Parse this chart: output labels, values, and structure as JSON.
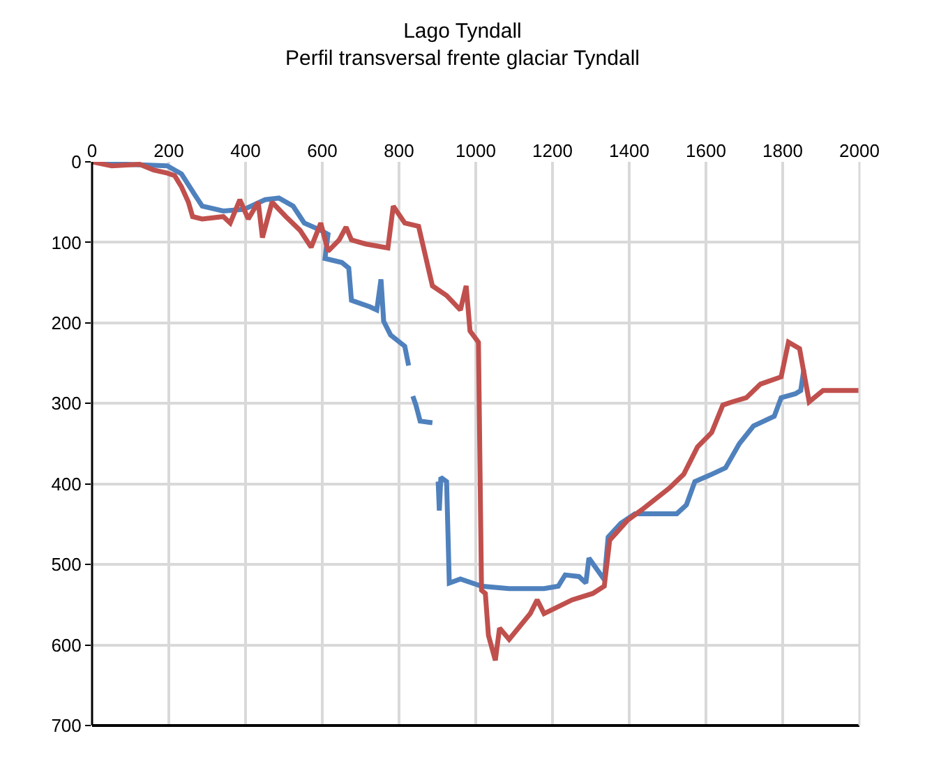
{
  "chart_data": {
    "type": "line",
    "title": "Lago Tyndall",
    "subtitle": "Perfil transversal frente glaciar Tyndall",
    "xlim": [
      0,
      2000
    ],
    "xticks": [
      0,
      200,
      400,
      600,
      800,
      1000,
      1200,
      1400,
      1600,
      1800,
      2000
    ],
    "ylim": [
      700,
      0
    ],
    "yticks": [
      0,
      100,
      200,
      300,
      400,
      500,
      600,
      700
    ],
    "grid": true,
    "marker": "none",
    "line_style": "solid",
    "series": [
      {
        "color": "#4f81bd",
        "x": [
          0,
          87,
          196,
          233,
          269,
          287,
          342,
          396,
          451,
          487,
          524,
          553,
          596,
          615,
          607,
          651,
          669,
          676,
          724,
          742,
          753,
          760,
          778,
          815,
          825,
          830,
          836,
          844,
          855,
          887,
          895,
          902,
          905,
          909,
          924,
          931,
          960,
          1015,
          1087,
          1178,
          1215,
          1233,
          1269,
          1287,
          1295,
          1335,
          1345,
          1378,
          1415,
          1469,
          1524,
          1549,
          1571,
          1615,
          1651,
          1687,
          1724,
          1778,
          1796,
          1833,
          1847,
          1855
        ],
        "values": [
          0,
          3,
          5,
          15,
          42,
          55,
          61,
          59,
          47,
          45,
          55,
          76,
          85,
          90,
          120,
          125,
          132,
          172,
          180,
          184,
          146,
          198,
          215,
          229,
          253,
          null,
          291,
          302,
          322,
          324,
          null,
          397,
          433,
          392,
          397,
          523,
          518,
          527,
          530,
          530,
          527,
          513,
          515,
          523,
          492,
          519,
          466,
          449,
          437,
          437,
          437,
          426,
          397,
          388,
          380,
          350,
          328,
          316,
          293,
          288,
          284,
          258
        ]
      },
      {
        "color": "#c0504d",
        "x": [
          0,
          51,
          124,
          160,
          196,
          215,
          233,
          251,
          262,
          287,
          342,
          360,
          385,
          407,
          433,
          444,
          469,
          505,
          542,
          571,
          596,
          615,
          644,
          662,
          676,
          713,
          771,
          785,
          815,
          851,
          887,
          924,
          960,
          975,
          985,
          1007,
          1015,
          1025,
          1033,
          1051,
          1062,
          1087,
          1142,
          1160,
          1178,
          1251,
          1305,
          1335,
          1349,
          1396,
          1433,
          1505,
          1542,
          1578,
          1615,
          1644,
          1669,
          1705,
          1742,
          1796,
          1815,
          1844,
          1869,
          1905,
          2000
        ],
        "values": [
          0,
          5,
          3,
          10,
          14,
          17,
          31,
          50,
          68,
          71,
          68,
          76,
          47,
          71,
          50,
          94,
          50,
          68,
          85,
          106,
          76,
          111,
          97,
          81,
          97,
          102,
          107,
          55,
          76,
          80,
          154,
          166,
          184,
          154,
          210,
          224,
          532,
          536,
          588,
          619,
          579,
          593,
          561,
          544,
          561,
          544,
          536,
          527,
          470,
          445,
          432,
          405,
          388,
          354,
          336,
          302,
          298,
          293,
          276,
          267,
          224,
          232,
          298,
          284,
          284
        ]
      }
    ]
  }
}
